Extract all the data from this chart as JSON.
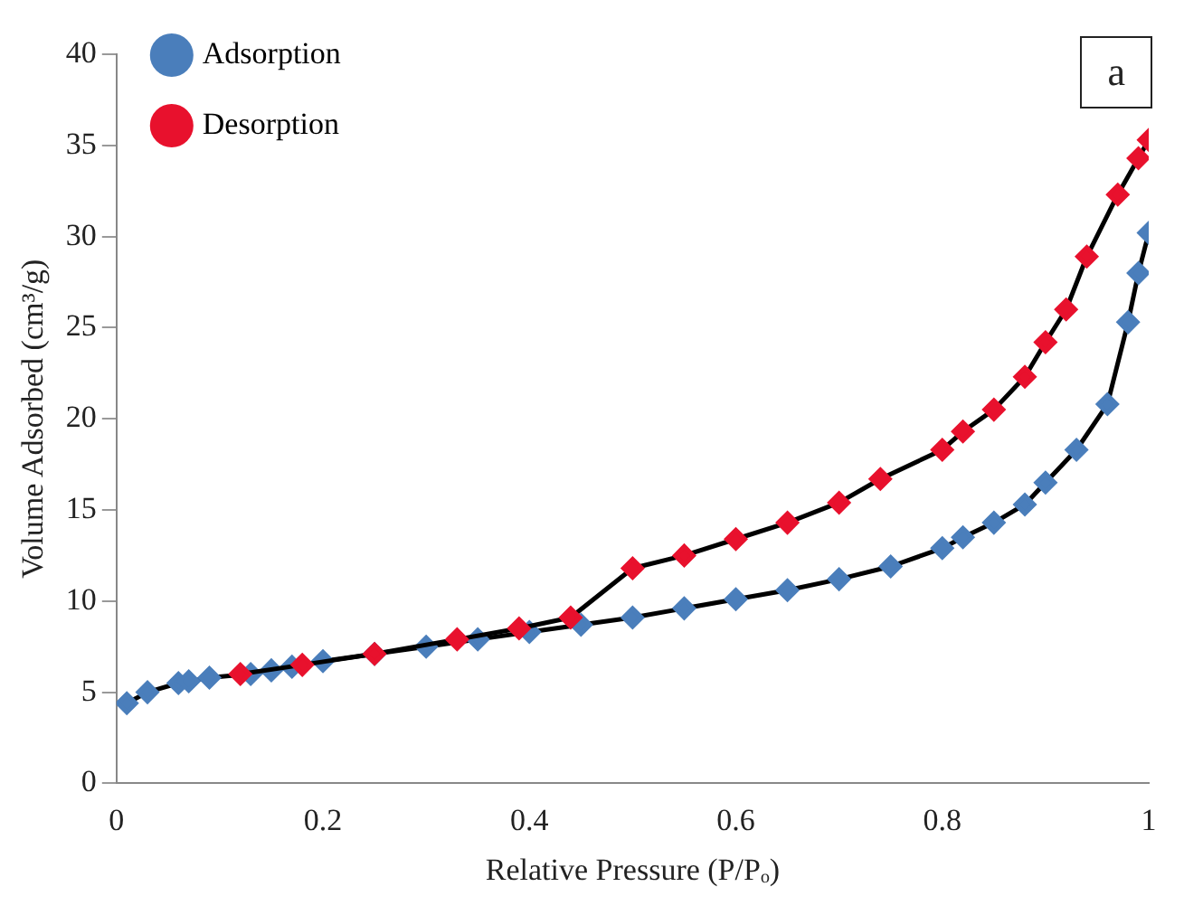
{
  "chart_data": {
    "type": "line",
    "xlabel": "Relative Pressure (P/Pₒ)",
    "ylabel": "Volume Adsorbed (cm³/g)",
    "xlim": [
      0,
      1
    ],
    "xticks": [
      0,
      0.2,
      0.4,
      0.6,
      0.8,
      1
    ],
    "ylim": [
      0,
      40
    ],
    "yticks": [
      0,
      5,
      10,
      15,
      20,
      25,
      30,
      35,
      40
    ],
    "grid": false,
    "legend": "top left",
    "marker": "diamond",
    "line_style": "solid",
    "annotations": [
      "a"
    ],
    "series": [
      {
        "name": "Adsorption",
        "color": "#4a7ebb",
        "x": [
          0.01,
          0.03,
          0.06,
          0.07,
          0.09,
          0.13,
          0.15,
          0.17,
          0.2,
          0.25,
          0.3,
          0.35,
          0.4,
          0.45,
          0.5,
          0.55,
          0.6,
          0.65,
          0.7,
          0.75,
          0.8,
          0.82,
          0.85,
          0.88,
          0.9,
          0.93,
          0.96,
          0.98,
          0.99,
          1.0
        ],
        "values": [
          4.4,
          5.0,
          5.5,
          5.6,
          5.8,
          6.0,
          6.2,
          6.4,
          6.7,
          7.1,
          7.5,
          7.9,
          8.3,
          8.7,
          9.1,
          9.6,
          10.1,
          10.6,
          11.2,
          11.9,
          12.9,
          13.5,
          14.3,
          15.3,
          16.5,
          18.3,
          20.8,
          25.3,
          28.0,
          30.2
        ]
      },
      {
        "name": "Desorption",
        "color": "#e8112d",
        "x": [
          1.0,
          0.99,
          0.97,
          0.94,
          0.92,
          0.9,
          0.88,
          0.85,
          0.82,
          0.8,
          0.74,
          0.7,
          0.65,
          0.6,
          0.55,
          0.5,
          0.44,
          0.39,
          0.33,
          0.25,
          0.18,
          0.12
        ],
        "values": [
          35.3,
          34.3,
          32.3,
          28.9,
          26.0,
          24.2,
          22.3,
          20.5,
          19.3,
          18.3,
          16.7,
          15.4,
          14.3,
          13.4,
          12.5,
          11.8,
          9.1,
          8.5,
          7.9,
          7.1,
          6.5,
          6.0
        ]
      }
    ]
  }
}
